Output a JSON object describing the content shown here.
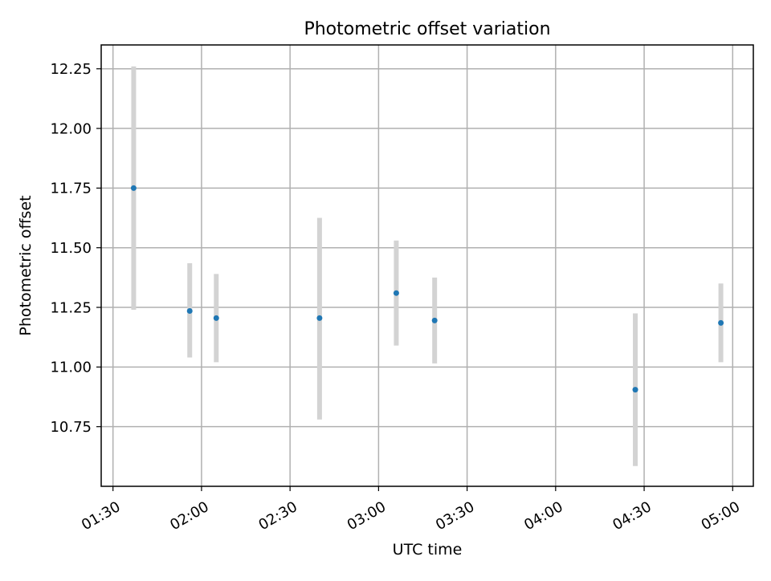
{
  "chart_data": {
    "type": "scatter",
    "title": "Photometric offset variation",
    "xlabel": "UTC time",
    "ylabel": "Photometric offset",
    "x_axis": {
      "kind": "time",
      "range": [
        "01:26",
        "05:07"
      ],
      "ticks": [
        "01:30",
        "02:00",
        "02:30",
        "03:00",
        "03:30",
        "04:00",
        "04:30",
        "05:00"
      ]
    },
    "y_axis": {
      "range": [
        10.5,
        12.35
      ],
      "ticks": [
        10.75,
        11.0,
        11.25,
        11.5,
        11.75,
        12.0,
        12.25
      ],
      "tick_labels": [
        "10.75",
        "11.00",
        "11.25",
        "11.50",
        "11.75",
        "12.00",
        "12.25"
      ]
    },
    "grid": true,
    "legend": "none",
    "series": [
      {
        "points": [
          {
            "x": "01:37",
            "y": 11.75,
            "ylow": 11.24,
            "yhigh": 12.26
          },
          {
            "x": "01:56",
            "y": 11.235,
            "ylow": 11.04,
            "yhigh": 11.435
          },
          {
            "x": "02:05",
            "y": 11.205,
            "ylow": 11.02,
            "yhigh": 11.39
          },
          {
            "x": "02:40",
            "y": 11.205,
            "ylow": 10.78,
            "yhigh": 11.625
          },
          {
            "x": "03:06",
            "y": 11.31,
            "ylow": 11.09,
            "yhigh": 11.53
          },
          {
            "x": "03:19",
            "y": 11.195,
            "ylow": 11.015,
            "yhigh": 11.375
          },
          {
            "x": "04:27",
            "y": 10.905,
            "ylow": 10.585,
            "yhigh": 11.225
          },
          {
            "x": "04:56",
            "y": 11.185,
            "ylow": 11.02,
            "yhigh": 11.35
          }
        ]
      }
    ],
    "colors": {
      "marker": "#1f77b4",
      "errorbar": "#d3d3d3",
      "grid": "#b0b0b0",
      "axes": "#000000"
    }
  }
}
